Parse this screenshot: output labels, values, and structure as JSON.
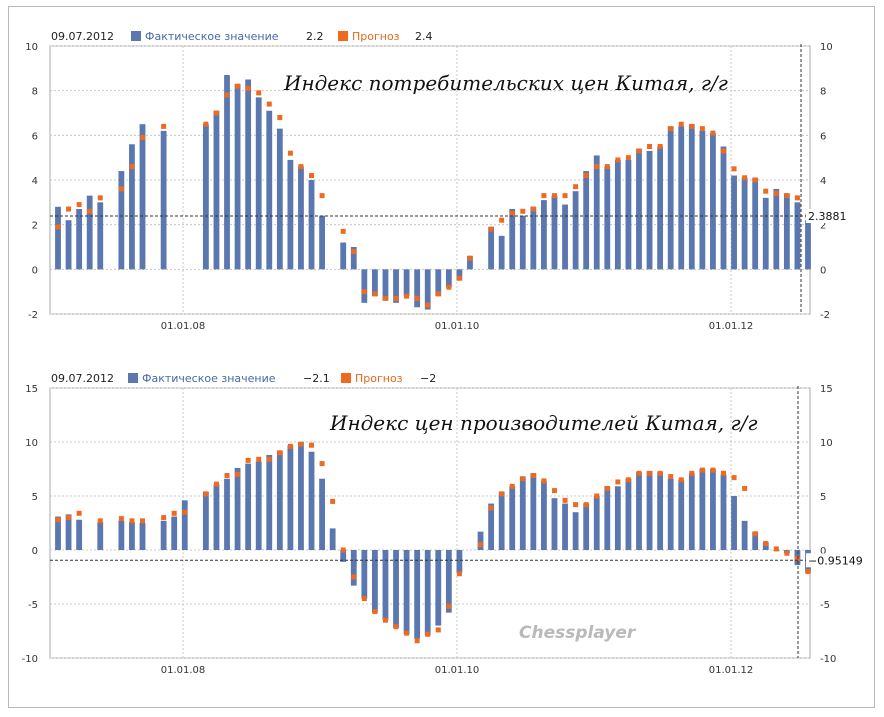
{
  "colors": {
    "actual": "#5b77b0",
    "forecast": "#ef6a1e",
    "grid": "#c8c8c8"
  },
  "watermark": "Chessplayer",
  "chart_data": [
    {
      "type": "bar",
      "title": "Индекс потребительских цен Китая, г/г",
      "legend": {
        "date": "09.07.2012",
        "actual_label": "Фактическое значение",
        "actual_value": "2.2",
        "forecast_label": "Прогноз",
        "forecast_value": "2.4"
      },
      "ylim": [
        -2,
        10
      ],
      "yticks": [
        "10",
        "8",
        "6",
        "4",
        "2",
        "0",
        "-2"
      ],
      "xtick_labels": [
        "01.01.08",
        "01.01.10",
        "01.01.12"
      ],
      "reference_line": {
        "value": 2.3881,
        "label": "2.3881"
      },
      "series": [
        {
          "name": "Фактическое значение",
          "values": [
            2.8,
            2.2,
            2.7,
            3.3,
            3.0,
            null,
            4.4,
            5.6,
            6.5,
            null,
            6.2,
            null,
            null,
            null,
            6.5,
            7.1,
            8.7,
            8.3,
            8.5,
            7.7,
            7.1,
            6.3,
            4.9,
            4.6,
            4.0,
            2.4,
            null,
            1.2,
            1.0,
            -1.5,
            -1.2,
            -1.4,
            -1.5,
            -1.2,
            -1.7,
            -1.8,
            -1.2,
            -0.8,
            -0.5,
            0.6,
            null,
            1.9,
            1.5,
            2.7,
            2.4,
            2.8,
            3.1,
            3.3,
            2.9,
            3.5,
            4.4,
            5.1,
            4.6,
            4.9,
            4.9,
            5.4,
            5.3,
            5.5,
            6.4,
            6.4,
            6.5,
            6.2,
            6.1,
            5.5,
            4.2,
            4.1,
            4.1,
            3.2,
            3.6,
            3.4,
            3.0,
            2.2
          ]
        },
        {
          "name": "Прогноз",
          "values": [
            1.9,
            2.7,
            2.9,
            2.6,
            3.2,
            null,
            3.6,
            4.6,
            5.9,
            null,
            6.4,
            null,
            null,
            null,
            6.5,
            7.0,
            7.8,
            8.2,
            8.1,
            7.9,
            7.4,
            6.8,
            5.2,
            4.6,
            4.2,
            3.3,
            null,
            1.7,
            0.8,
            -1.0,
            -1.1,
            -1.3,
            -1.3,
            -1.2,
            -1.3,
            -1.6,
            -1.1,
            -0.8,
            -0.4,
            0.5,
            null,
            1.8,
            2.2,
            2.5,
            2.6,
            2.7,
            3.3,
            3.3,
            3.3,
            3.7,
            4.2,
            4.6,
            4.6,
            4.9,
            5.0,
            5.3,
            5.5,
            5.5,
            6.3,
            6.5,
            6.4,
            6.3,
            6.1,
            5.3,
            4.5,
            4.1,
            4.0,
            3.5,
            3.4,
            3.3,
            3.2,
            2.4
          ]
        }
      ]
    },
    {
      "type": "bar",
      "title": "Индекс цен производителей Китая, г/г",
      "legend": {
        "date": "09.07.2012",
        "actual_label": "Фактическое значение",
        "actual_value": "−2.1",
        "forecast_label": "Прогноз",
        "forecast_value": "−2"
      },
      "ylim": [
        -10,
        15
      ],
      "yticks": [
        "15",
        "10",
        "5",
        "0",
        "-5",
        "-10"
      ],
      "xtick_labels": [
        "01.01.08",
        "01.01.10",
        "01.01.12"
      ],
      "reference_line": {
        "value": -0.95149,
        "label": "−0.95149"
      },
      "series": [
        {
          "name": "Фактическое значение",
          "values": [
            3.1,
            3.3,
            2.8,
            null,
            2.6,
            null,
            2.7,
            2.6,
            2.5,
            null,
            2.7,
            3.1,
            4.6,
            null,
            5.4,
            6.1,
            6.6,
            7.6,
            8.0,
            8.2,
            8.8,
            9.2,
            9.7,
            10.0,
            9.1,
            6.6,
            2.0,
            -1.1,
            -3.3,
            -4.5,
            -5.8,
            -6.5,
            -7.2,
            -7.8,
            -8.2,
            -7.9,
            -7.0,
            -5.8,
            -2.1,
            null,
            1.7,
            4.3,
            5.4,
            5.9,
            6.8,
            7.1,
            6.4,
            4.8,
            4.3,
            3.5,
            4.3,
            5.0,
            5.9,
            5.9,
            6.6,
            7.2,
            7.3,
            7.2,
            6.6,
            6.5,
            7.1,
            7.5,
            7.5,
            7.0,
            5.0,
            2.7,
            1.7,
            0.7,
            0.0,
            -0.3,
            -1.4,
            -2.1
          ]
        },
        {
          "name": "Прогноз",
          "values": [
            2.8,
            3.0,
            3.4,
            null,
            2.7,
            null,
            2.9,
            2.7,
            2.7,
            null,
            3.0,
            3.4,
            3.5,
            null,
            5.2,
            6.1,
            6.9,
            7.0,
            8.3,
            8.4,
            8.4,
            9.0,
            9.6,
            9.8,
            9.7,
            8.0,
            4.5,
            0.0,
            -2.5,
            -4.5,
            -5.7,
            -6.5,
            -7.1,
            -7.7,
            -8.4,
            -7.8,
            -7.4,
            -5.2,
            -2.2,
            null,
            0.5,
            3.9,
            5.2,
            5.9,
            6.6,
            6.9,
            6.4,
            5.5,
            4.6,
            4.2,
            4.2,
            5.0,
            5.7,
            6.3,
            6.5,
            7.1,
            7.1,
            7.1,
            6.8,
            6.5,
            7.1,
            7.4,
            7.4,
            7.1,
            6.7,
            5.7,
            1.5,
            0.6,
            0.1,
            -0.3,
            -0.8,
            -2.0
          ]
        }
      ]
    }
  ]
}
